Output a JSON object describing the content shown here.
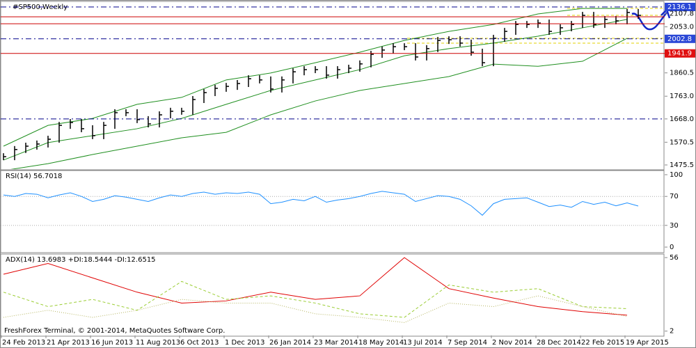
{
  "chart_data": [
    {
      "type": "ohlc",
      "title": "#SP500,Weekly",
      "x_labels": [
        "24 Feb 2013",
        "21 Apr 2013",
        "16 Jun 2013",
        "11 Aug 2013",
        "6 Oct 2013",
        "1 Dec 2013",
        "26 Jan 2014",
        "23 Mar 2014",
        "18 May 2014",
        "13 Jul 2014",
        "7 Sep 2014",
        "2 Nov 2014",
        "28 Dec 2014",
        "22 Feb 2015",
        "19 Apr 2015"
      ],
      "close": [
        1510,
        1540,
        1554,
        1563,
        1583,
        1641,
        1653,
        1627,
        1598,
        1641,
        1694,
        1694,
        1665,
        1647,
        1685,
        1700,
        1700,
        1749,
        1778,
        1796,
        1804,
        1816,
        1836,
        1831,
        1793,
        1831,
        1865,
        1874,
        1874,
        1851,
        1874,
        1880,
        1898,
        1938,
        1956,
        1970,
        1970,
        1927,
        1962,
        1996,
        1999,
        1985,
        1947,
        1903,
        2005,
        2034,
        2063,
        2063,
        2069,
        2034,
        2049,
        2063,
        2101,
        2063,
        2084,
        2078,
        2113,
        2101
      ],
      "color": "#000000",
      "bands": {
        "color": "#1f8f1f",
        "upper": [
          1554,
          1641,
          1670,
          1729,
          1758,
          1831,
          1860,
          1903,
          1947,
          1996,
          2034,
          2063,
          2107,
          2130,
          2130
        ],
        "middle": [
          1496,
          1569,
          1598,
          1627,
          1670,
          1729,
          1787,
          1831,
          1874,
          1932,
          1962,
          1985,
          2014,
          2049,
          2084
        ],
        "lower": [
          1452,
          1481,
          1519,
          1554,
          1589,
          1612,
          1685,
          1743,
          1787,
          1816,
          1845,
          1897,
          1888,
          1909,
          2005
        ]
      },
      "levels": [
        {
          "value": 2136.1,
          "color": "#00008b",
          "dash": true,
          "tag": "#2a47d6"
        },
        {
          "value": 2095,
          "color": "#cc0000",
          "dash": false
        },
        {
          "value": 2066,
          "color": "#cc0000",
          "dash": false
        },
        {
          "value": 2002.8,
          "color": "#00008b",
          "dash": true,
          "tag": "#2a47d6"
        },
        {
          "value": 1941.9,
          "color": "#cc0000",
          "dash": false,
          "tag": "#e01010"
        },
        {
          "value": 1668,
          "color": "#00008b",
          "dash": true
        }
      ],
      "ylim": [
        1458,
        2156.5
      ],
      "yticks": [
        {
          "value": 1475.5,
          "label": "1475.5"
        },
        {
          "value": 1570.5,
          "label": "1570.5"
        },
        {
          "value": 1668,
          "label": "1668.0"
        },
        {
          "value": 1763,
          "label": "1763.0"
        },
        {
          "value": 1860.5,
          "label": "1860.5"
        },
        {
          "value": 2053,
          "label": "2053.0"
        },
        {
          "value": 2107.8,
          "label": "2107.8"
        }
      ]
    },
    {
      "type": "line",
      "title": "RSI(14) 56.7018",
      "values": [
        72,
        70,
        74,
        73,
        68,
        72,
        75,
        70,
        63,
        66,
        71,
        69,
        66,
        63,
        68,
        72,
        70,
        74,
        76,
        73,
        75,
        74,
        76,
        73,
        60,
        62,
        66,
        64,
        70,
        62,
        65,
        67,
        70,
        74,
        77,
        75,
        73,
        63,
        67,
        71,
        70,
        66,
        57,
        44,
        60,
        66,
        67,
        68,
        62,
        56,
        58,
        55,
        63,
        59,
        62,
        57,
        61,
        56.7
      ],
      "color": "#1e90ff",
      "levels": [
        70,
        30
      ],
      "ylim": [
        -6.7,
        104.8
      ],
      "yticks": [
        100,
        70,
        30,
        0
      ]
    },
    {
      "type": "multiline",
      "title": "ADX(14) 13.6983 +DI:18.5444 -DI:12.6515",
      "series": [
        {
          "color": "#e00000",
          "style": "solid",
          "values": [
            43.8,
            51.7,
            41.1,
            30.6,
            22.6,
            24.2,
            30.6,
            25.3,
            27.9,
            56,
            33.2,
            26.3,
            20,
            16.3,
            13.7
          ]
        },
        {
          "color": "#9acd32",
          "style": "dashed",
          "values": [
            30.6,
            20,
            25.3,
            17.3,
            38.5,
            25.3,
            27.9,
            22.6,
            14.7,
            12.1,
            35.9,
            30.6,
            33.2,
            20,
            18.5
          ]
        },
        {
          "color": "#b5b560",
          "style": "dotted",
          "values": [
            12.1,
            17.3,
            12.1,
            17.3,
            25.3,
            22.6,
            22.6,
            14.7,
            12.1,
            8.3,
            22.6,
            20,
            27.9,
            20,
            12.7
          ]
        }
      ],
      "footer": "FreshForex Terminal, © 2001-2014, MetaQuotes Software Corp.",
      "ylim": [
        -1.2,
        58.1
      ],
      "yticks": [
        56,
        2
      ]
    }
  ]
}
